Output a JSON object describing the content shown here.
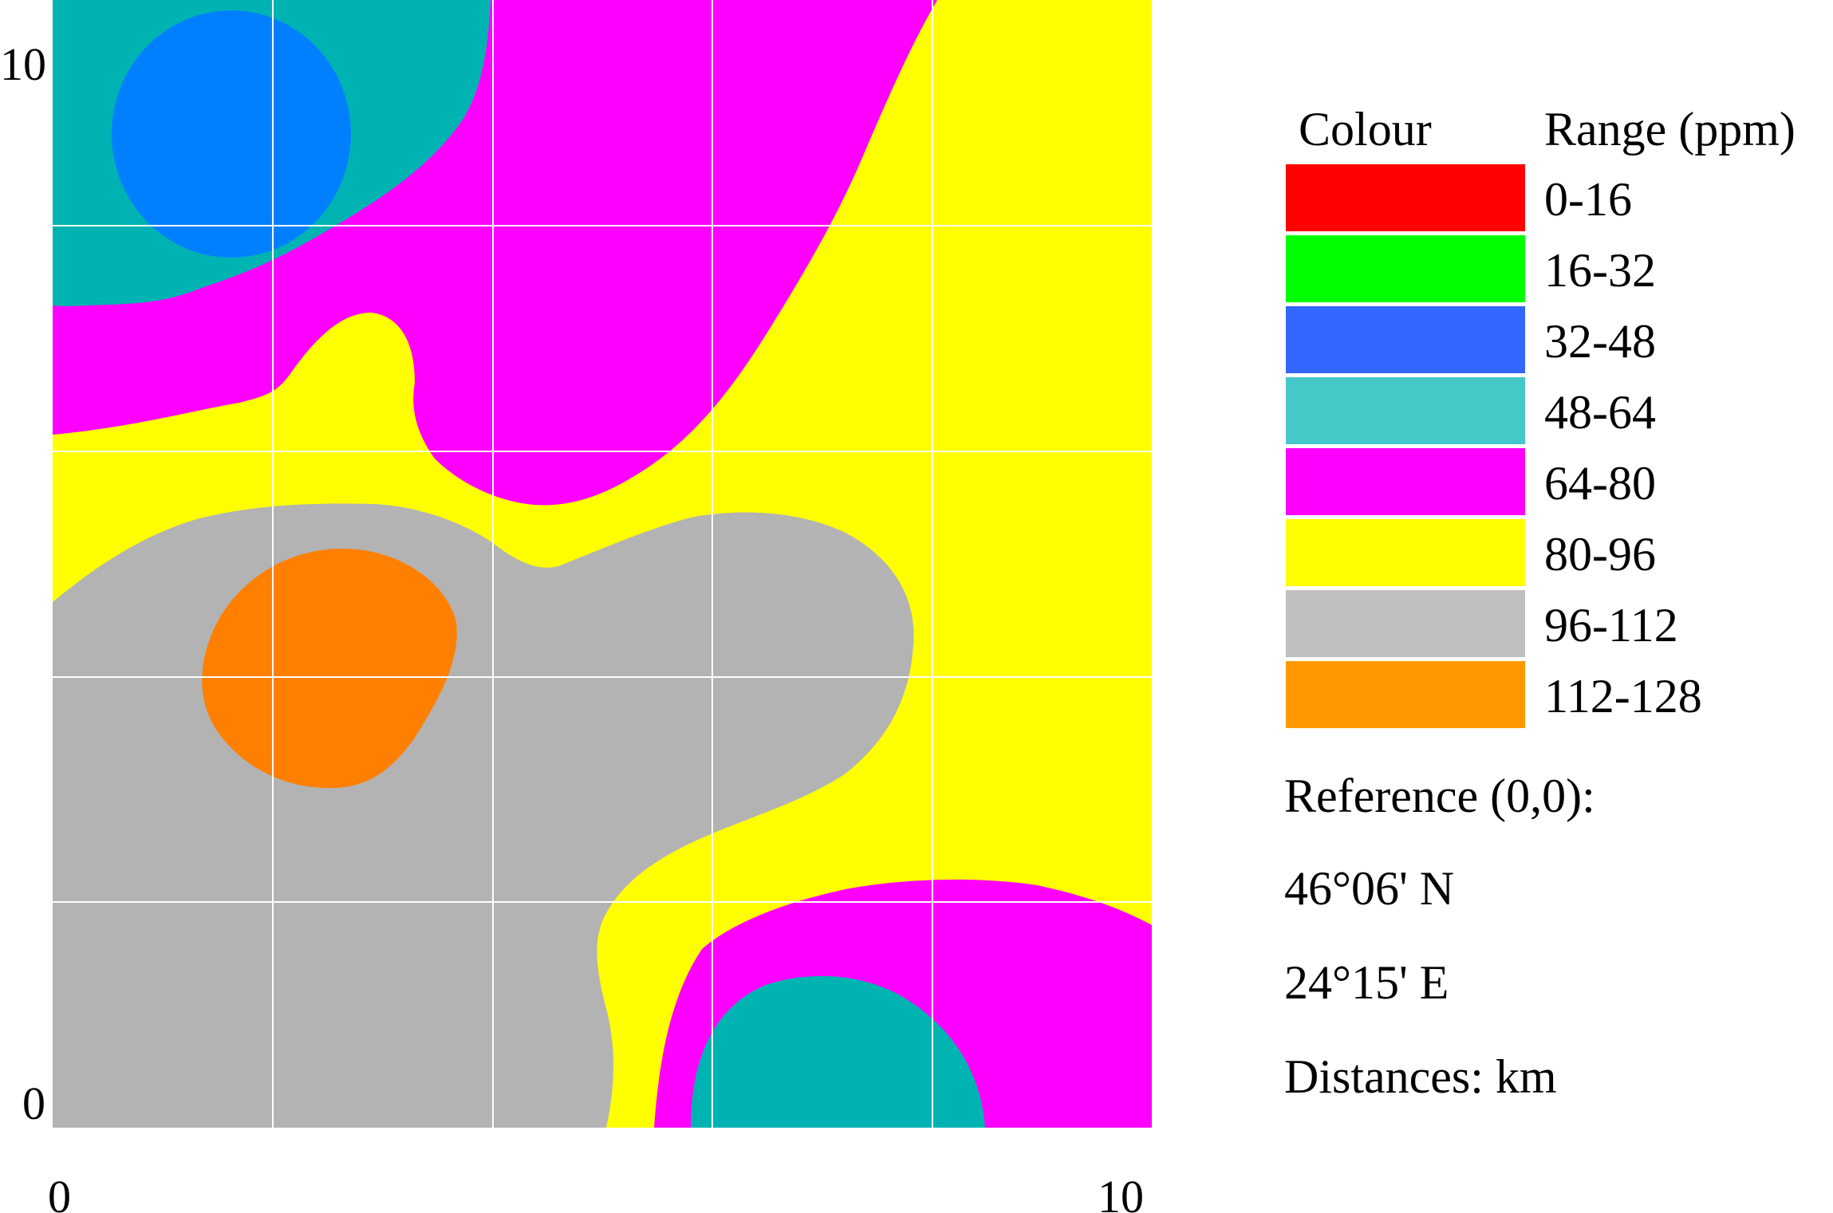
{
  "map": {
    "x_axis": {
      "min_label": "0",
      "max_label": "10"
    },
    "y_axis": {
      "min_label": "0",
      "max_label": "10"
    },
    "grid": true,
    "region_colors": {
      "teal": "#00b3b3",
      "blue": "#0080ff",
      "magenta": "#ff00ff",
      "yellow": "#ffff00",
      "gray": "#b3b3b3",
      "orange": "#ff8000"
    }
  },
  "legend": {
    "colour_header": "Colour",
    "range_header": "Range (ppm)",
    "items": [
      {
        "range": "0-16",
        "color": "#ff0000"
      },
      {
        "range": "16-32",
        "color": "#00ff00"
      },
      {
        "range": "32-48",
        "color": "#3366ff"
      },
      {
        "range": "48-64",
        "color": "#44c8c8"
      },
      {
        "range": "64-80",
        "color": "#ff00ff"
      },
      {
        "range": "80-96",
        "color": "#ffff00"
      },
      {
        "range": "96-112",
        "color": "#c0c0c0"
      },
      {
        "range": "112-128",
        "color": "#ff9900"
      }
    ]
  },
  "info": {
    "reference": "Reference (0,0):",
    "latitude": "46°06' N",
    "longitude": "24°15' E",
    "units": "Distances: km"
  }
}
